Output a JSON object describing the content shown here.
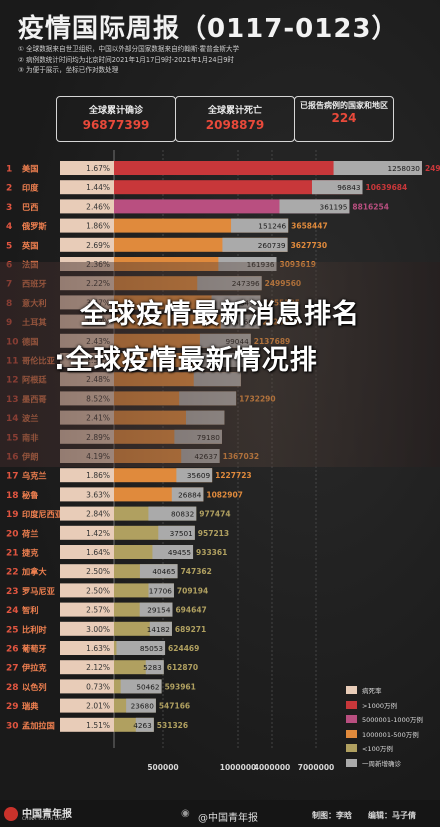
{
  "title": "疫情国际周报（0117-0123）",
  "notes": [
    "① 全球数据来自世卫组织，中国以外部分国家数据来自约翰斯·霍普金斯大学",
    "② 病例数统计时间均为北京时间2021年1月17日9时-2021年1月24日9时",
    "③ 为便于展示，坐标已作对数处理"
  ],
  "summary": [
    {
      "label": "全球累计确诊",
      "value": "96877399"
    },
    {
      "label": "全球累计死亡",
      "value": "2098879"
    },
    {
      "label": "已报告病例的国家和地区",
      "value": "224"
    }
  ],
  "overlay": {
    "line1": "全球疫情最新消息排名",
    "line2": ":全球疫情最新情况排"
  },
  "colors": {
    "tier1": "#c8373a",
    "tier2": "#b94f80",
    "tier3": "#e08a3c",
    "tier4": "#b0a060",
    "weekly": "#aaaaaa",
    "death_rate": "#e8ccb8",
    "title": "#f2f2f2"
  },
  "chart_data": {
    "type": "bar",
    "xscale": "log",
    "xlim": [
      1,
      7000000
    ],
    "xticks": [
      "500000",
      "1000000",
      "4000000",
      "7000000"
    ],
    "categories": [
      "美国",
      "印度",
      "巴西",
      "俄罗斯",
      "英国",
      "法国",
      "西班牙",
      "意大利",
      "土耳其",
      "德国",
      "哥伦比亚",
      "阿根廷",
      "墨西哥",
      "波兰",
      "南非",
      "伊朗",
      "乌克兰",
      "秘鲁",
      "印度尼西亚",
      "荷兰",
      "捷克",
      "加拿大",
      "罗马尼亚",
      "智利",
      "比利时",
      "葡萄牙",
      "伊拉克",
      "以色列",
      "瑞典",
      "孟加拉国"
    ],
    "ranks": [
      "1",
      "2",
      "3",
      "4",
      "5",
      "6",
      "7",
      "8",
      "9",
      "10",
      "11",
      "12",
      "13",
      "14",
      "15",
      "16",
      "17",
      "18",
      "19",
      "20",
      "21",
      "22",
      "23",
      "24",
      "25",
      "26",
      "27",
      "28",
      "29",
      "30"
    ],
    "death_rate": [
      "1.67%",
      "1.44%",
      "2.46%",
      "1.86%",
      "2.69%",
      "2.36%",
      "2.22%",
      "3.47%",
      "1.03%",
      "2.43%",
      "2.55%",
      "2.48%",
      "8.52%",
      "2.41%",
      "2.89%",
      "4.19%",
      "1.86%",
      "3.63%",
      "2.84%",
      "1.42%",
      "1.64%",
      "2.50%",
      "2.50%",
      "2.57%",
      "3.00%",
      "1.63%",
      "2.12%",
      "0.73%",
      "2.01%",
      "1.51%"
    ],
    "weekly_new": [
      1258030,
      96843,
      361195,
      151246,
      260739,
      161936,
      247396,
      86452,
      43663,
      99044,
      102900,
      76800,
      149500,
      42700,
      79180,
      42637,
      35609,
      26884,
      80832,
      37501,
      49455,
      40465,
      17706,
      29154,
      14182,
      85053,
      5283,
      50462,
      23680,
      4263
    ],
    "weekly_new_labels": [
      "1258030",
      "96843",
      "361195",
      "151246",
      "260739",
      "161936",
      "247396",
      "86452",
      "43663",
      "99044",
      "",
      "",
      "",
      "",
      "79180",
      "42637",
      "35609",
      "26884",
      "80832",
      "37501",
      "49455",
      "40465",
      "17706",
      "29154",
      "14182",
      "85053",
      "5283",
      "50462",
      "23680",
      "4263"
    ],
    "cumulative": [
      24982615,
      10639684,
      8816254,
      3658447,
      3627730,
      3093619,
      2499560,
      2455185,
      2424328,
      2137689,
      2002969,
      1853830,
      1732290,
      1464448,
      1413325,
      1367032,
      1227723,
      1082907,
      977474,
      957213,
      933361,
      747362,
      709194,
      694647,
      689271,
      624469,
      612870,
      593961,
      547166,
      531326
    ],
    "cumulative_labels": [
      "24982615",
      "10639684",
      "8816254",
      "3658447",
      "3627730",
      "3093619",
      "2499560",
      "2455185",
      "2424328",
      "2137689",
      "",
      "",
      "1732290",
      "",
      "",
      "1367032",
      "1227723",
      "1082907",
      "977474",
      "957213",
      "933361",
      "747362",
      "709194",
      "694647",
      "689271",
      "624469",
      "612870",
      "593961",
      "547166",
      "531326"
    ],
    "tiers": [
      "tier1",
      "tier1",
      "tier2",
      "tier3",
      "tier3",
      "tier3",
      "tier3",
      "tier3",
      "tier3",
      "tier3",
      "tier3",
      "tier3",
      "tier3",
      "tier3",
      "tier3",
      "tier3",
      "tier3",
      "tier3",
      "tier4",
      "tier4",
      "tier4",
      "tier4",
      "tier4",
      "tier4",
      "tier4",
      "tier4",
      "tier4",
      "tier4",
      "tier4",
      "tier4"
    ],
    "legend": [
      {
        "label": "病死率",
        "color": "#e8ccb8"
      },
      {
        "label": ">1000万例",
        "color": "#c8373a"
      },
      {
        "label": "5000001-1000万例",
        "color": "#b94f80"
      },
      {
        "label": "1000001-500万例",
        "color": "#e08a3c"
      },
      {
        "label": "<100万例",
        "color": "#b0a060"
      },
      {
        "label": "一周新增确诊",
        "color": "#aaaaaa"
      }
    ]
  },
  "footer": {
    "logo": "中国青年报",
    "logo_sub": "CHINA YOUTH DAILY",
    "weibo": "@中国青年报",
    "producer": "制图：李晗",
    "editor": "编辑：马子倩"
  }
}
